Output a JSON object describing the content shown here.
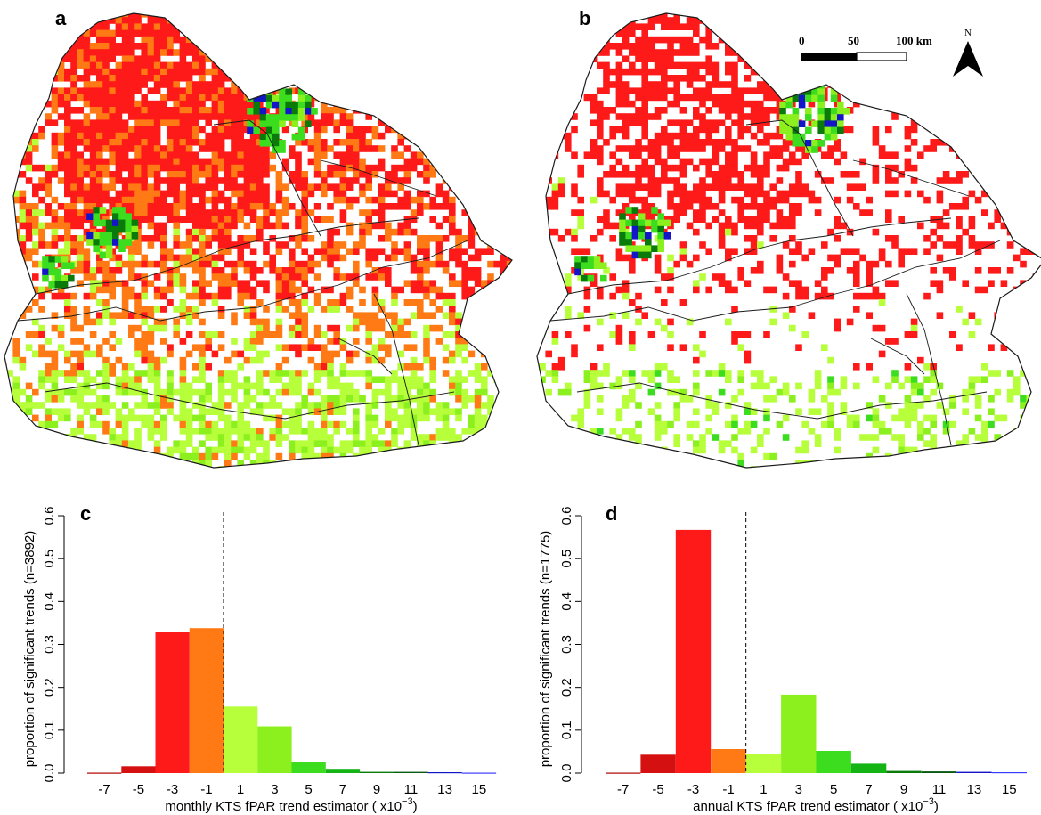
{
  "panels": {
    "a": "a",
    "b": "b",
    "c": "c",
    "d": "d"
  },
  "scalebar": {
    "labels": [
      "0",
      "50",
      "100 km"
    ],
    "north": "N"
  },
  "colors": {
    "-7": "#b00000",
    "-5": "#d41010",
    "-3": "#ff1a1a",
    "-1": "#ff7a14",
    "1": "#b6ff3a",
    "3": "#8cf01e",
    "5": "#3cdc1e",
    "7": "#14b414",
    "9": "#0a7a0a",
    "11": "#0a5a14",
    "13": "#1414c8",
    "15": "#3c3cff",
    "border": "#1a1a1a",
    "dashed_line": "#000000"
  },
  "chart_data": [
    {
      "panel": "c",
      "type": "bar",
      "categories": [
        "-7",
        "-5",
        "-3",
        "-1",
        "1",
        "3",
        "5",
        "7",
        "9",
        "11",
        "13",
        "15"
      ],
      "values": [
        0.001,
        0.016,
        0.33,
        0.338,
        0.155,
        0.109,
        0.027,
        0.01,
        0.003,
        0.003,
        0.002,
        0.001
      ],
      "xlabel_main": "monthly KTS fPAR trend estimator ( x10",
      "xlabel_sup": "−3",
      "xlabel_end": ")",
      "ylabel": "proportion of significant trends (n=3892)",
      "ylim": [
        0,
        0.6
      ],
      "yticks": [
        "0.0",
        "0.1",
        "0.2",
        "0.3",
        "0.4",
        "0.5",
        "0.6"
      ],
      "dashed_line_at": "0",
      "grid": false
    },
    {
      "panel": "d",
      "type": "bar",
      "categories": [
        "-7",
        "-5",
        "-3",
        "-1",
        "1",
        "3",
        "5",
        "7",
        "9",
        "11",
        "13",
        "15"
      ],
      "values": [
        0.001,
        0.043,
        0.567,
        0.056,
        0.045,
        0.183,
        0.052,
        0.022,
        0.005,
        0.004,
        0.003,
        0.002
      ],
      "xlabel_main": "annual KTS fPAR trend estimator ( x10",
      "xlabel_sup": "−3",
      "xlabel_end": ")",
      "ylabel": "proportion of significant trends (n=1775)",
      "ylim": [
        0,
        0.6
      ],
      "yticks": [
        "0.0",
        "0.1",
        "0.2",
        "0.3",
        "0.4",
        "0.5",
        "0.6"
      ],
      "dashed_line_at": "0",
      "grid": false
    }
  ]
}
